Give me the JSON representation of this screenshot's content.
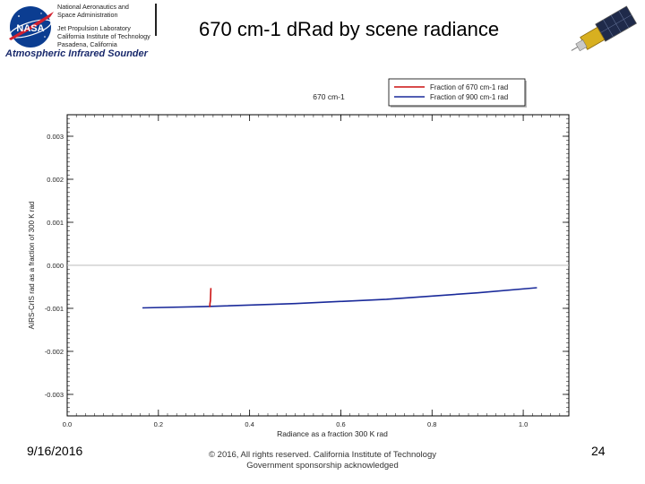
{
  "header": {
    "org_lines": [
      "National Aeronautics and",
      "Space Administration",
      "Jet Propulsion Laboratory",
      "California Institute of Technology",
      "Pasadena, California"
    ],
    "program": "Atmospheric Infrared Sounder",
    "logo_text": "NASA"
  },
  "slide": {
    "title": "670 cm-1 dRad by scene radiance"
  },
  "chart_data": {
    "type": "line",
    "title": "670 cm-1",
    "xlabel": "Radiance as a fraction 300 K rad",
    "ylabel": "AIRS-CrIS rad as a fraction of 300 K rad",
    "xlim": [
      0.0,
      1.1
    ],
    "ylim": [
      -0.0035,
      0.0035
    ],
    "x_ticks": [
      "0.0",
      "0.2",
      "0.4",
      "0.6",
      "0.8",
      "1.0"
    ],
    "y_ticks": [
      "0.003",
      "0.002",
      "0.001",
      "0.000",
      "-0.001",
      "-0.002",
      "-0.003"
    ],
    "legend_position": "top-right",
    "zero_line": true,
    "series": [
      {
        "name": "Fraction of 670 cm-1 rad",
        "color": "#cc1111",
        "x": [
          0.313,
          0.313,
          0.314,
          0.315
        ],
        "y": [
          -0.00097,
          -0.0009,
          -0.00082,
          -0.00053
        ]
      },
      {
        "name": "Fraction of 900 cm-1 rad",
        "color": "#1a2a9a",
        "x": [
          0.165,
          0.3,
          0.5,
          0.7,
          0.9,
          1.03
        ],
        "y": [
          -0.00099,
          -0.00096,
          -0.00089,
          -0.00079,
          -0.00064,
          -0.00052
        ]
      }
    ]
  },
  "footer": {
    "date": "9/16/2016",
    "copyright_line1": "© 2016, All rights reserved. California Institute of Technology",
    "copyright_line2": "Government sponsorship acknowledged",
    "page": "24"
  },
  "colors": {
    "nasa_blue": "#0b3d91",
    "nasa_red": "#d3212f",
    "program_text": "#1a2a6c",
    "series_red": "#cc1111",
    "series_blue": "#1a2a9a"
  },
  "icons": [
    "nasa-logo-icon",
    "satellite-icon"
  ]
}
